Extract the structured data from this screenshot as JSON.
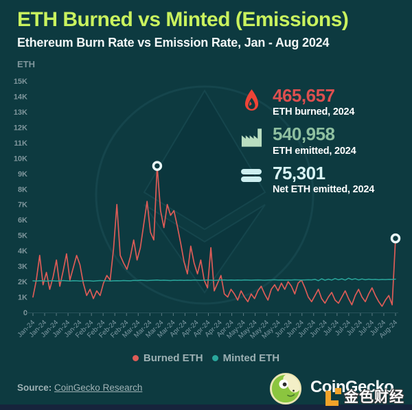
{
  "colors": {
    "background": "#0d3a40",
    "title": "#c9f25e",
    "burned_red": "#dd5c57",
    "minted_teal": "#2aa79c",
    "flame_icon": "#ee4437",
    "factory_icon": "#b9ddc0",
    "equals_icon": "#cdeef0",
    "axis_text": "#7f969c",
    "bottom_bar": "#16243c"
  },
  "stats": [
    {
      "icon": "flame-icon",
      "value": "465,657",
      "label": "ETH burned, 2024"
    },
    {
      "icon": "factory-icon",
      "value": "540,958",
      "label": "ETH emitted, 2024"
    },
    {
      "icon": "equals-icon",
      "value": "75,301",
      "label": "Net ETH emitted, 2024"
    }
  ],
  "footer": {
    "source_prefix": "Source:",
    "source_link": "CoinGecko Research",
    "brand": "CoinGecko",
    "watermark": "金色财经"
  },
  "chart_data": {
    "type": "line",
    "title": "ETH Burned vs Minted (Emissions)",
    "subtitle": "Ethereum Burn Rate vs Emission Rate, Jan - Aug 2024",
    "ylabel": "ETH",
    "xlabel": "",
    "ylim": [
      0,
      15000
    ],
    "grid": false,
    "legend_position": "bottom",
    "y_tick_labels": [
      "0",
      "1K",
      "2K",
      "3K",
      "4K",
      "5K",
      "6K",
      "7K",
      "8K",
      "9K",
      "10K",
      "11K",
      "12K",
      "13K",
      "14K",
      "15K"
    ],
    "x_tick_labels": [
      "Jan-24",
      "Jan-24",
      "Jan-24",
      "Jan-24",
      "Jan-24",
      "Feb-24",
      "Feb-24",
      "Feb-24",
      "Feb-24",
      "Mar-24",
      "Mar-24",
      "Mar-24",
      "Mar-24",
      "Apr-24",
      "Apr-24",
      "Apr-24",
      "Apr-24",
      "Apr-24",
      "May-24",
      "May-24",
      "May-24",
      "May-24",
      "Jun-24",
      "Jun-24",
      "Jun-24",
      "Jun-24",
      "Jul-24",
      "Jul-24",
      "Jul-24",
      "Jul-24",
      "Jul-24",
      "Aug-24"
    ],
    "series": [
      {
        "name": "Burned ETH",
        "color": "#dd5c57",
        "values": [
          1000,
          2100,
          3700,
          1800,
          2600,
          1500,
          2300,
          3400,
          1700,
          2700,
          3800,
          2100,
          2900,
          3700,
          3100,
          1900,
          1100,
          1500,
          900,
          1400,
          1100,
          1900,
          2400,
          2100,
          4100,
          7000,
          3700,
          3200,
          2800,
          3600,
          4700,
          3400,
          4200,
          5700,
          7200,
          5200,
          4700,
          9500,
          6600,
          5500,
          7000,
          6300,
          6600,
          5600,
          4500,
          3300,
          2500,
          4300,
          3200,
          2500,
          3400,
          2100,
          1600,
          4200,
          1400,
          1900,
          2400,
          1200,
          1000,
          1500,
          1200,
          800,
          1400,
          1000,
          700,
          1200,
          900,
          1400,
          1700,
          1200,
          800,
          1500,
          1800,
          1400,
          1900,
          1500,
          2000,
          1700,
          1200,
          1900,
          2100,
          1600,
          1000,
          700,
          1100,
          1500,
          900,
          600,
          1000,
          1300,
          800,
          600,
          1000,
          1400,
          900,
          500,
          1100,
          1500,
          1000,
          700,
          1200,
          1600,
          1100,
          700,
          400,
          800,
          1100,
          500,
          4800
        ]
      },
      {
        "name": "Minted ETH",
        "color": "#2aa79c",
        "values": [
          2050,
          2040,
          2060,
          2050,
          2030,
          2050,
          2060,
          2040,
          2050,
          2070,
          2050,
          2040,
          2060,
          2050,
          2040,
          2050,
          2060,
          2050,
          2030,
          2050,
          2070,
          2060,
          2050,
          2040,
          2050,
          2060,
          2050,
          2070,
          2060,
          2050,
          2080,
          2070,
          2090,
          2080,
          2070,
          2080,
          2090,
          2100,
          2080,
          2090,
          2080,
          2070,
          2090,
          2080,
          2090,
          2080,
          2090,
          2080,
          2100,
          2090,
          2080,
          2090,
          2100,
          2090,
          2080,
          2090,
          2100,
          2110,
          2090,
          2100,
          2090,
          2100,
          2090,
          2110,
          2100,
          2090,
          2100,
          2110,
          2100,
          2090,
          2100,
          2110,
          2120,
          2100,
          2110,
          2100,
          2110,
          2100,
          2120,
          2110,
          2100,
          2110,
          2120,
          2110,
          2150,
          2060,
          2180,
          2090,
          2160,
          2100,
          2200,
          2120,
          2180,
          2100,
          2220,
          2130,
          2190,
          2110,
          2170,
          2120,
          2160,
          2130,
          2150,
          2120,
          2140,
          2130,
          2150,
          2140,
          2160
        ]
      }
    ],
    "markers": [
      {
        "series": 0,
        "index": 37,
        "value": 9500
      },
      {
        "series": 0,
        "index": 108,
        "value": 4800
      }
    ]
  }
}
